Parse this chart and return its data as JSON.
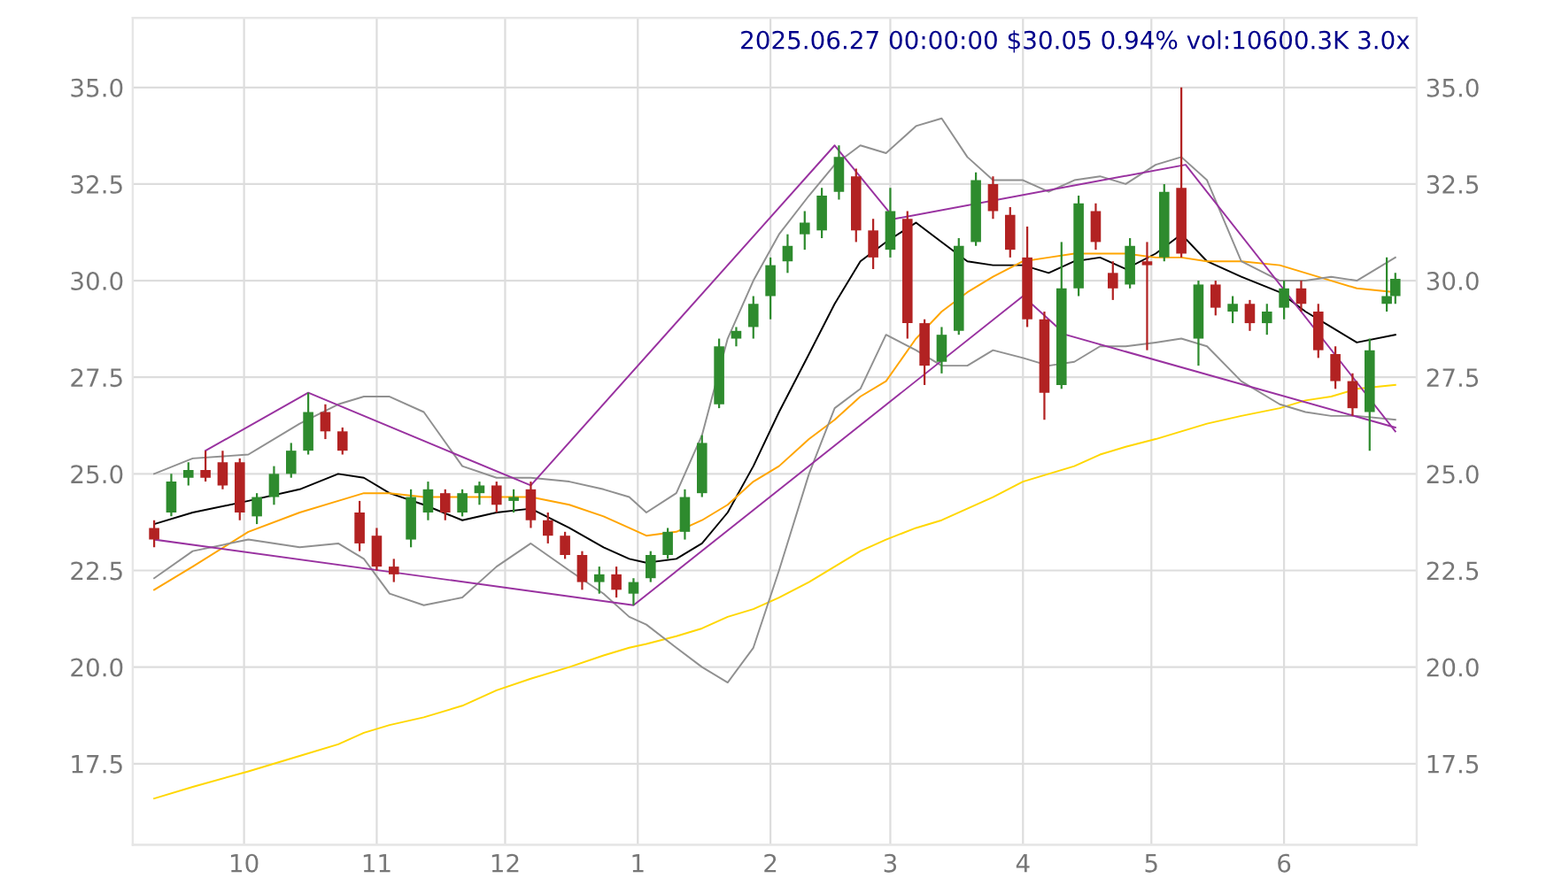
{
  "chart_data": {
    "type": "candlestick",
    "title": "2025.06.27 00:00:00 $30.05 0.94% vol:10600.3K 3.0x",
    "x": [
      "2024-09-10",
      "2024-09-14",
      "2024-09-18",
      "2024-09-22",
      "2024-09-26",
      "2024-09-30",
      "2024-10-04",
      "2024-10-08",
      "2024-10-12",
      "2024-10-16",
      "2024-10-20",
      "2024-10-24",
      "2024-10-28",
      "2024-11-01",
      "2024-11-05",
      "2024-11-09",
      "2024-11-13",
      "2024-11-17",
      "2024-11-21",
      "2024-11-25",
      "2024-11-29",
      "2024-12-03",
      "2024-12-07",
      "2024-12-11",
      "2024-12-15",
      "2024-12-19",
      "2024-12-23",
      "2024-12-27",
      "2024-12-31",
      "2025-01-04",
      "2025-01-08",
      "2025-01-12",
      "2025-01-16",
      "2025-01-20",
      "2025-01-24",
      "2025-01-28",
      "2025-02-01",
      "2025-02-05",
      "2025-02-09",
      "2025-02-13",
      "2025-02-17",
      "2025-02-21",
      "2025-02-25",
      "2025-03-01",
      "2025-03-05",
      "2025-03-09",
      "2025-03-13",
      "2025-03-17",
      "2025-03-21",
      "2025-03-25",
      "2025-03-29",
      "2025-04-02",
      "2025-04-06",
      "2025-04-10",
      "2025-04-14",
      "2025-04-18",
      "2025-04-22",
      "2025-04-26",
      "2025-04-30",
      "2025-05-04",
      "2025-05-08",
      "2025-05-12",
      "2025-05-16",
      "2025-05-20",
      "2025-05-24",
      "2025-05-28",
      "2025-06-01",
      "2025-06-05",
      "2025-06-09",
      "2025-06-13",
      "2025-06-17",
      "2025-06-21",
      "2025-06-25",
      "2025-06-27"
    ],
    "ohlc": [
      [
        23.6,
        23.8,
        23.1,
        23.3
      ],
      [
        24.0,
        25.0,
        23.9,
        24.8
      ],
      [
        24.9,
        25.3,
        24.7,
        25.1
      ],
      [
        25.1,
        25.6,
        24.8,
        24.9
      ],
      [
        25.3,
        25.6,
        24.6,
        24.7
      ],
      [
        25.3,
        25.4,
        23.8,
        24.0
      ],
      [
        23.9,
        24.5,
        23.7,
        24.4
      ],
      [
        24.4,
        25.2,
        24.2,
        25.0
      ],
      [
        25.0,
        25.8,
        24.9,
        25.6
      ],
      [
        25.6,
        27.1,
        25.5,
        26.6
      ],
      [
        26.6,
        26.8,
        25.9,
        26.1
      ],
      [
        26.1,
        26.2,
        25.5,
        25.6
      ],
      [
        24.0,
        24.3,
        23.0,
        23.2
      ],
      [
        23.4,
        23.6,
        22.5,
        22.6
      ],
      [
        22.6,
        22.8,
        22.2,
        22.4
      ],
      [
        23.3,
        24.6,
        23.1,
        24.4
      ],
      [
        24.0,
        24.8,
        23.8,
        24.6
      ],
      [
        24.5,
        24.6,
        23.8,
        24.0
      ],
      [
        24.0,
        24.6,
        23.9,
        24.5
      ],
      [
        24.5,
        24.8,
        24.2,
        24.7
      ],
      [
        24.7,
        24.8,
        24.0,
        24.2
      ],
      [
        24.3,
        24.6,
        24.0,
        24.4
      ],
      [
        24.6,
        24.8,
        23.6,
        23.8
      ],
      [
        23.8,
        24.0,
        23.2,
        23.4
      ],
      [
        23.4,
        23.5,
        22.8,
        22.9
      ],
      [
        22.9,
        23.0,
        22.0,
        22.2
      ],
      [
        22.2,
        22.6,
        21.9,
        22.4
      ],
      [
        22.4,
        22.6,
        21.8,
        22.0
      ],
      [
        21.9,
        22.3,
        21.6,
        22.2
      ],
      [
        22.3,
        23.0,
        22.2,
        22.9
      ],
      [
        22.9,
        23.6,
        22.8,
        23.5
      ],
      [
        23.5,
        24.6,
        23.3,
        24.4
      ],
      [
        24.5,
        26.0,
        24.4,
        25.8
      ],
      [
        26.8,
        28.5,
        26.7,
        28.3
      ],
      [
        28.5,
        28.8,
        28.3,
        28.7
      ],
      [
        28.8,
        29.6,
        28.5,
        29.4
      ],
      [
        29.6,
        30.6,
        29.0,
        30.4
      ],
      [
        30.5,
        31.2,
        30.2,
        30.9
      ],
      [
        31.2,
        31.8,
        30.8,
        31.5
      ],
      [
        31.3,
        32.4,
        31.1,
        32.2
      ],
      [
        32.3,
        33.5,
        32.1,
        33.2
      ],
      [
        32.7,
        32.9,
        31.0,
        31.3
      ],
      [
        31.3,
        31.6,
        30.3,
        30.6
      ],
      [
        30.8,
        32.4,
        30.6,
        31.8
      ],
      [
        31.6,
        31.8,
        28.5,
        28.9
      ],
      [
        28.9,
        29.0,
        27.3,
        27.8
      ],
      [
        27.9,
        28.8,
        27.6,
        28.6
      ],
      [
        28.7,
        31.1,
        28.6,
        30.9
      ],
      [
        31.0,
        32.8,
        30.9,
        32.6
      ],
      [
        32.5,
        32.7,
        31.6,
        31.8
      ],
      [
        31.7,
        31.9,
        30.6,
        30.8
      ],
      [
        30.6,
        31.4,
        28.8,
        29.0
      ],
      [
        29.0,
        29.2,
        26.4,
        27.1
      ],
      [
        27.3,
        31.0,
        27.2,
        29.8
      ],
      [
        29.8,
        32.2,
        29.6,
        32.0
      ],
      [
        31.8,
        32.0,
        30.8,
        31.0
      ],
      [
        30.2,
        30.5,
        29.5,
        29.8
      ],
      [
        29.9,
        31.1,
        29.8,
        30.9
      ],
      [
        30.5,
        31.0,
        28.2,
        30.4
      ],
      [
        30.6,
        32.5,
        30.5,
        32.3
      ],
      [
        32.4,
        35.0,
        30.6,
        30.7
      ],
      [
        28.5,
        30.0,
        27.8,
        29.9
      ],
      [
        29.9,
        30.0,
        29.1,
        29.3
      ],
      [
        29.2,
        29.6,
        28.9,
        29.4
      ],
      [
        29.4,
        29.5,
        28.7,
        28.9
      ],
      [
        28.9,
        29.4,
        28.6,
        29.2
      ],
      [
        29.3,
        30.0,
        29.0,
        29.8
      ],
      [
        29.8,
        30.0,
        29.2,
        29.4
      ],
      [
        29.2,
        29.4,
        28.0,
        28.2
      ],
      [
        28.1,
        28.3,
        27.2,
        27.4
      ],
      [
        27.4,
        27.6,
        26.5,
        26.7
      ],
      [
        26.6,
        28.5,
        25.6,
        28.2
      ],
      [
        29.4,
        30.6,
        29.2,
        29.6
      ],
      [
        29.6,
        30.2,
        29.4,
        30.05
      ]
    ],
    "colors": [
      "#b22222",
      "#2e8b2e",
      "#2e8b2e",
      "#b22222",
      "#b22222",
      "#b22222",
      "#2e8b2e",
      "#2e8b2e",
      "#2e8b2e",
      "#2e8b2e",
      "#b22222",
      "#b22222",
      "#b22222",
      "#b22222",
      "#b22222",
      "#2e8b2e",
      "#2e8b2e",
      "#b22222",
      "#2e8b2e",
      "#2e8b2e",
      "#b22222",
      "#2e8b2e",
      "#b22222",
      "#b22222",
      "#b22222",
      "#b22222",
      "#2e8b2e",
      "#b22222",
      "#2e8b2e",
      "#2e8b2e",
      "#2e8b2e",
      "#2e8b2e",
      "#2e8b2e",
      "#2e8b2e",
      "#2e8b2e",
      "#2e8b2e",
      "#2e8b2e",
      "#2e8b2e",
      "#2e8b2e",
      "#2e8b2e",
      "#2e8b2e",
      "#b22222",
      "#b22222",
      "#2e8b2e",
      "#b22222",
      "#b22222",
      "#2e8b2e",
      "#2e8b2e",
      "#2e8b2e",
      "#b22222",
      "#b22222",
      "#b22222",
      "#b22222",
      "#2e8b2e",
      "#2e8b2e",
      "#b22222",
      "#b22222",
      "#2e8b2e",
      "#b22222",
      "#2e8b2e",
      "#b22222",
      "#2e8b2e",
      "#b22222",
      "#2e8b2e",
      "#b22222",
      "#2e8b2e",
      "#2e8b2e",
      "#b22222",
      "#b22222",
      "#b22222",
      "#b22222",
      "#2e8b2e",
      "#2e8b2e",
      "#2e8b2e"
    ],
    "series": [
      {
        "type": "line",
        "color": "#000000",
        "x": [
          "2024-09-10",
          "2024-09-19",
          "2024-10-02",
          "2024-10-14",
          "2024-10-23",
          "2024-10-29",
          "2024-11-04",
          "2024-11-12",
          "2024-11-21",
          "2024-11-29",
          "2024-12-07",
          "2024-12-16",
          "2024-12-24",
          "2024-12-30",
          "2025-01-03",
          "2025-01-10",
          "2025-01-16",
          "2025-01-22",
          "2025-01-28",
          "2025-02-03",
          "2025-02-10",
          "2025-02-16",
          "2025-02-22",
          "2025-02-28",
          "2025-03-07",
          "2025-03-13",
          "2025-03-19",
          "2025-03-25",
          "2025-04-01",
          "2025-04-07",
          "2025-04-13",
          "2025-04-19",
          "2025-04-25",
          "2025-05-02",
          "2025-05-08",
          "2025-05-14",
          "2025-05-22",
          "2025-05-31",
          "2025-06-06",
          "2025-06-12",
          "2025-06-18",
          "2025-06-27"
        ],
        "values": [
          23.7,
          24.0,
          24.3,
          24.6,
          25.0,
          24.9,
          24.5,
          24.2,
          23.8,
          24.0,
          24.1,
          23.6,
          23.1,
          22.8,
          22.7,
          22.8,
          23.2,
          24.0,
          25.2,
          26.6,
          28.1,
          29.4,
          30.5,
          31.0,
          31.5,
          31.0,
          30.5,
          30.4,
          30.4,
          30.2,
          30.5,
          30.6,
          30.3,
          30.7,
          31.2,
          30.5,
          30.1,
          29.7,
          29.2,
          28.8,
          28.4,
          28.6
        ]
      },
      {
        "type": "line",
        "color": "#ffa500",
        "x": [
          "2024-09-10",
          "2024-09-19",
          "2024-10-02",
          "2024-10-14",
          "2024-10-23",
          "2024-10-29",
          "2024-11-04",
          "2024-11-12",
          "2024-11-21",
          "2024-11-29",
          "2024-12-07",
          "2024-12-16",
          "2024-12-24",
          "2024-12-30",
          "2025-01-03",
          "2025-01-10",
          "2025-01-16",
          "2025-01-22",
          "2025-01-28",
          "2025-02-03",
          "2025-02-10",
          "2025-02-16",
          "2025-02-22",
          "2025-02-28",
          "2025-03-07",
          "2025-03-13",
          "2025-03-19",
          "2025-03-25",
          "2025-04-01",
          "2025-04-07",
          "2025-04-13",
          "2025-04-19",
          "2025-04-25",
          "2025-05-02",
          "2025-05-08",
          "2025-05-14",
          "2025-05-22",
          "2025-05-31",
          "2025-06-06",
          "2025-06-12",
          "2025-06-18",
          "2025-06-27"
        ],
        "values": [
          22.0,
          22.6,
          23.5,
          24.0,
          24.3,
          24.5,
          24.5,
          24.4,
          24.4,
          24.4,
          24.4,
          24.2,
          23.9,
          23.6,
          23.4,
          23.5,
          23.8,
          24.2,
          24.8,
          25.2,
          25.9,
          26.4,
          27.0,
          27.4,
          28.5,
          29.2,
          29.7,
          30.1,
          30.5,
          30.6,
          30.7,
          30.7,
          30.7,
          30.6,
          30.6,
          30.5,
          30.5,
          30.4,
          30.2,
          30.0,
          29.8,
          29.7
        ]
      },
      {
        "type": "line",
        "color": "#ffd700",
        "x": [
          "2024-09-10",
          "2024-09-19",
          "2024-10-02",
          "2024-10-14",
          "2024-10-23",
          "2024-10-29",
          "2024-11-04",
          "2024-11-12",
          "2024-11-21",
          "2024-11-29",
          "2024-12-07",
          "2024-12-16",
          "2024-12-24",
          "2024-12-30",
          "2025-01-03",
          "2025-01-10",
          "2025-01-16",
          "2025-01-22",
          "2025-01-28",
          "2025-02-03",
          "2025-02-10",
          "2025-02-16",
          "2025-02-22",
          "2025-02-28",
          "2025-03-07",
          "2025-03-13",
          "2025-03-19",
          "2025-03-25",
          "2025-04-01",
          "2025-04-07",
          "2025-04-13",
          "2025-04-19",
          "2025-04-25",
          "2025-05-02",
          "2025-05-08",
          "2025-05-14",
          "2025-05-22",
          "2025-05-31",
          "2025-06-06",
          "2025-06-12",
          "2025-06-18",
          "2025-06-27"
        ],
        "values": [
          16.6,
          16.9,
          17.3,
          17.7,
          18.0,
          18.3,
          18.5,
          18.7,
          19.0,
          19.4,
          19.7,
          20.0,
          20.3,
          20.5,
          20.6,
          20.8,
          21.0,
          21.3,
          21.5,
          21.8,
          22.2,
          22.6,
          23.0,
          23.3,
          23.6,
          23.8,
          24.1,
          24.4,
          24.8,
          25.0,
          25.2,
          25.5,
          25.7,
          25.9,
          26.1,
          26.3,
          26.5,
          26.7,
          26.9,
          27.0,
          27.2,
          27.3
        ]
      },
      {
        "type": "line",
        "color": "#909090",
        "x": [
          "2024-09-10",
          "2024-09-19",
          "2024-10-02",
          "2024-10-14",
          "2024-10-23",
          "2024-10-29",
          "2024-11-04",
          "2024-11-12",
          "2024-11-21",
          "2024-11-29",
          "2024-12-07",
          "2024-12-16",
          "2024-12-24",
          "2024-12-30",
          "2025-01-03",
          "2025-01-10",
          "2025-01-16",
          "2025-01-22",
          "2025-01-28",
          "2025-02-03",
          "2025-02-10",
          "2025-02-16",
          "2025-02-22",
          "2025-02-28",
          "2025-03-07",
          "2025-03-13",
          "2025-03-19",
          "2025-03-25",
          "2025-04-01",
          "2025-04-07",
          "2025-04-13",
          "2025-04-19",
          "2025-04-25",
          "2025-05-02",
          "2025-05-08",
          "2025-05-14",
          "2025-05-22",
          "2025-05-31",
          "2025-06-06",
          "2025-06-12",
          "2025-06-18",
          "2025-06-27"
        ],
        "values": [
          25.0,
          25.4,
          25.5,
          26.3,
          26.8,
          27.0,
          27.0,
          26.6,
          25.2,
          24.9,
          24.9,
          24.8,
          24.6,
          24.4,
          24.0,
          24.5,
          26.0,
          28.5,
          30.0,
          31.2,
          32.2,
          33.0,
          33.5,
          33.3,
          34.0,
          34.2,
          33.2,
          32.6,
          32.6,
          32.3,
          32.6,
          32.7,
          32.5,
          33.0,
          33.2,
          32.6,
          30.5,
          30.0,
          30.0,
          30.1,
          30.0,
          30.6
        ]
      },
      {
        "type": "line",
        "color": "#909090",
        "x": [
          "2024-09-10",
          "2024-09-19",
          "2024-10-02",
          "2024-10-14",
          "2024-10-23",
          "2024-10-29",
          "2024-11-04",
          "2024-11-12",
          "2024-11-21",
          "2024-11-29",
          "2024-12-07",
          "2024-12-16",
          "2024-12-24",
          "2024-12-30",
          "2025-01-03",
          "2025-01-10",
          "2025-01-16",
          "2025-01-22",
          "2025-01-28",
          "2025-02-03",
          "2025-02-10",
          "2025-02-16",
          "2025-02-22",
          "2025-02-28",
          "2025-03-07",
          "2025-03-13",
          "2025-03-19",
          "2025-03-25",
          "2025-04-01",
          "2025-04-07",
          "2025-04-13",
          "2025-04-19",
          "2025-04-25",
          "2025-05-02",
          "2025-05-08",
          "2025-05-14",
          "2025-05-22",
          "2025-05-31",
          "2025-06-06",
          "2025-06-12",
          "2025-06-18",
          "2025-06-27"
        ],
        "values": [
          22.3,
          23.0,
          23.3,
          23.1,
          23.2,
          22.8,
          21.9,
          21.6,
          21.8,
          22.6,
          23.2,
          22.5,
          21.9,
          21.3,
          21.1,
          20.5,
          20.0,
          19.6,
          20.5,
          22.5,
          25.0,
          26.7,
          27.2,
          28.6,
          28.2,
          27.8,
          27.8,
          28.2,
          28.0,
          27.8,
          27.9,
          28.3,
          28.3,
          28.4,
          28.5,
          28.3,
          27.4,
          26.8,
          26.6,
          26.5,
          26.5,
          26.4
        ]
      },
      {
        "type": "line",
        "color": "#9932a0",
        "x": [
          "2024-09-22",
          "2024-10-16",
          "2024-12-07",
          "2025-02-16",
          "2025-03-02",
          "2025-05-09",
          "2025-06-27"
        ],
        "values": [
          25.6,
          27.1,
          24.7,
          33.5,
          31.6,
          33.0,
          26.1
        ]
      },
      {
        "type": "line",
        "color": "#9932a0",
        "x": [
          "2024-09-10",
          "2024-12-31",
          "2025-04-01",
          "2025-04-11",
          "2025-06-27"
        ],
        "values": [
          23.3,
          21.6,
          29.6,
          28.6,
          26.2
        ]
      }
    ],
    "xlim": [
      "2024-09-05",
      "2025-07-02"
    ],
    "xticks": [
      {
        "value": "2024-10-01",
        "label": "10"
      },
      {
        "value": "2024-11-01",
        "label": "11"
      },
      {
        "value": "2024-12-01",
        "label": "12"
      },
      {
        "value": "2025-01-01",
        "label": "1"
      },
      {
        "value": "2025-02-01",
        "label": "2"
      },
      {
        "value": "2025-03-01",
        "label": "3"
      },
      {
        "value": "2025-04-01",
        "label": "4"
      },
      {
        "value": "2025-05-01",
        "label": "5"
      },
      {
        "value": "2025-06-01",
        "label": "6"
      }
    ],
    "ylim": [
      15.4,
      36.8
    ],
    "yticks": [
      {
        "value": 17.5,
        "label": "17.5"
      },
      {
        "value": 20,
        "label": "20.0"
      },
      {
        "value": 22.5,
        "label": "22.5"
      },
      {
        "value": 25,
        "label": "25.0"
      },
      {
        "value": 27.5,
        "label": "27.5"
      },
      {
        "value": 30,
        "label": "30.0"
      },
      {
        "value": 32.5,
        "label": "32.5"
      },
      {
        "value": 35,
        "label": "35.0"
      }
    ],
    "y2lim": [
      15.4,
      36.8
    ],
    "y2ticks": [
      {
        "value": 17.5,
        "label": "17.5"
      },
      {
        "value": 20,
        "label": "20.0"
      },
      {
        "value": 22.5,
        "label": "22.5"
      },
      {
        "value": 25,
        "label": "25.0"
      },
      {
        "value": 27.5,
        "label": "27.5"
      },
      {
        "value": 30,
        "label": "30.0"
      },
      {
        "value": 32.5,
        "label": "32.5"
      },
      {
        "value": 35,
        "label": "35.0"
      }
    ],
    "grid": true
  }
}
